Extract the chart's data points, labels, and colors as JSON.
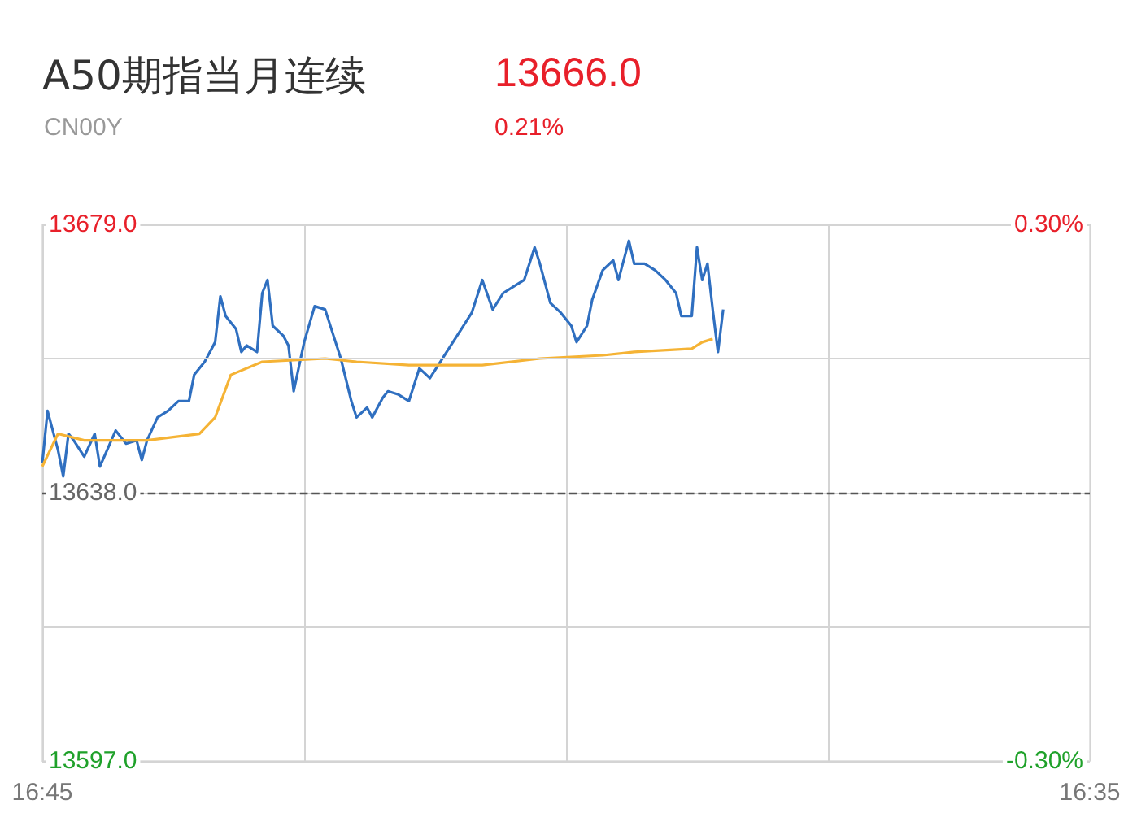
{
  "chart_data": {
    "type": "line",
    "title": "A50期指当月连续",
    "subtitle": "CN00Y",
    "annotations": [
      "13666.0",
      "0.21%"
    ],
    "categories": [
      "16:45",
      null,
      null,
      null,
      null,
      null,
      null,
      null,
      null,
      null,
      null,
      null,
      null,
      null,
      null,
      null,
      null,
      null,
      null,
      null,
      null,
      null,
      null,
      null,
      null,
      null,
      null,
      null,
      null,
      null,
      null,
      null,
      null,
      null,
      null,
      null,
      null,
      null,
      null,
      null,
      null,
      null,
      null,
      null,
      null,
      null,
      null,
      null,
      null,
      null,
      null,
      null,
      null,
      null,
      null,
      null,
      null,
      null,
      null,
      null,
      null,
      null,
      null,
      null,
      null,
      null,
      null,
      null,
      null,
      null,
      null,
      null,
      null,
      null,
      null,
      null,
      null,
      null,
      null,
      null,
      null,
      null,
      null,
      null,
      null,
      null,
      null,
      null,
      null,
      null,
      null,
      null,
      null,
      null,
      null,
      null,
      null,
      null,
      null,
      null,
      null,
      null,
      null,
      null,
      null,
      null,
      null,
      null,
      null,
      null,
      null,
      null,
      null,
      null,
      null,
      null,
      null,
      null,
      null,
      null,
      null,
      null,
      null,
      null,
      null,
      null,
      null,
      null,
      null,
      null,
      null,
      null,
      null,
      null,
      null,
      null,
      null,
      null,
      null,
      null,
      null,
      null,
      null,
      null,
      null,
      null,
      null,
      null,
      null,
      null,
      null,
      null,
      null,
      null,
      null,
      null,
      null,
      null,
      null,
      null,
      null,
      null,
      null,
      null,
      null,
      null,
      null,
      null,
      null,
      null,
      null,
      null,
      null,
      null,
      null,
      null,
      null,
      null,
      null,
      null,
      null,
      null,
      null,
      null,
      null,
      null,
      null,
      null,
      null,
      null,
      null,
      null,
      null,
      null,
      null,
      null,
      null,
      null,
      null,
      null,
      "16:35"
    ],
    "ylim": [
      13597,
      13679
    ],
    "yticks": [
      {
        "value": 13597,
        "label": "13597.0"
      },
      {
        "value": 13617.5,
        "label": null
      },
      {
        "value": 13638,
        "label": "13638.0"
      },
      {
        "value": 13658.5,
        "label": null
      },
      {
        "value": 13679,
        "label": "13679.0"
      }
    ],
    "y2lim": [
      -0.3,
      0.3
    ],
    "y2ticks": [
      {
        "value": -0.3,
        "label": "-0.30%"
      },
      {
        "value": 0.3,
        "label": "0.30%"
      }
    ],
    "ref_lines": [
      {
        "axis": "y",
        "value": 13638,
        "color": "#555555",
        "line_style": "dashed"
      }
    ],
    "grid": true,
    "marker": "none",
    "series": [
      {
        "color": "#2f6fc0",
        "values": [
          13642.5,
          13650.5,
          null,
          13644.5,
          13640.5,
          13647,
          13646,
          null,
          13643.5,
          null,
          13647,
          13642,
          null,
          null,
          13647.5,
          null,
          13645.5,
          null,
          13646,
          13643,
          13646,
          null,
          13649.5,
          null,
          13650.5,
          null,
          13652,
          null,
          13652,
          13656,
          null,
          13658,
          null,
          13661,
          13668,
          13665,
          null,
          13663,
          13659.5,
          13660.5,
          null,
          13659.5,
          13668.5,
          13670.5,
          13663.5,
          null,
          13662,
          13660.5,
          13653.5,
          null,
          13661,
          null,
          13666.5,
          null,
          13666,
          null,
          13661,
          13658.5,
          null,
          13652,
          13649.5,
          null,
          13651,
          13649.5,
          null,
          13652.5,
          13653.5,
          null,
          13653,
          null,
          13652,
          null,
          13657,
          null,
          13655.5,
          null,
          13658,
          null,
          13660.5,
          null,
          13663,
          null,
          13665.5,
          null,
          13670.5,
          null,
          13666,
          null,
          13668.5,
          null,
          13669.5,
          null,
          13670.5,
          null,
          13675.5,
          13673,
          null,
          13667,
          null,
          13665.5,
          null,
          13663.5,
          13661,
          null,
          13663.5,
          13667.5,
          null,
          13672,
          null,
          13673.5,
          13670.5,
          null,
          13676.5,
          13673,
          null,
          13673,
          null,
          13672,
          null,
          13670.5,
          null,
          13668.5,
          13665,
          null,
          13665,
          13675.5,
          13670.5,
          13673,
          13666,
          13659.5,
          13666,
          null,
          null,
          null,
          null,
          null,
          null,
          null,
          null,
          null,
          null,
          null,
          null,
          null,
          null,
          null,
          null,
          null,
          null,
          null,
          null,
          null,
          null,
          null,
          null,
          null,
          null,
          null,
          null,
          null,
          null,
          null,
          null,
          null,
          null,
          null,
          null,
          null,
          null,
          null,
          null,
          null,
          null,
          null,
          null,
          null,
          null,
          null,
          null,
          null,
          null,
          null,
          null,
          null,
          null,
          null,
          null,
          null,
          null,
          null,
          null,
          null,
          null,
          null,
          null,
          null,
          null,
          null,
          null,
          null,
          null
        ]
      },
      {
        "color": "#f5b335",
        "values": [
          13642,
          null,
          null,
          13647,
          null,
          null,
          null,
          null,
          13646,
          null,
          null,
          null,
          null,
          null,
          null,
          null,
          null,
          null,
          null,
          null,
          13646,
          null,
          null,
          null,
          null,
          null,
          null,
          null,
          null,
          null,
          13647,
          null,
          null,
          13649.5,
          null,
          null,
          13656,
          null,
          null,
          null,
          null,
          null,
          13658,
          null,
          null,
          null,
          null,
          null,
          null,
          null,
          null,
          null,
          null,
          null,
          13658.5,
          null,
          null,
          null,
          null,
          null,
          13658,
          null,
          null,
          null,
          null,
          null,
          null,
          null,
          null,
          null,
          13657.5,
          null,
          null,
          null,
          null,
          null,
          null,
          null,
          null,
          null,
          null,
          null,
          null,
          null,
          13657.5,
          null,
          null,
          null,
          null,
          null,
          null,
          null,
          null,
          null,
          null,
          13658.5,
          null,
          null,
          null,
          null,
          null,
          null,
          null,
          null,
          null,
          null,
          null,
          13659,
          null,
          null,
          null,
          null,
          null,
          13659.5,
          null,
          null,
          null,
          null,
          null,
          null,
          null,
          null,
          null,
          null,
          13660,
          null,
          13661,
          null,
          13661.5,
          null,
          null,
          null,
          null,
          null,
          null,
          null,
          null,
          null,
          null,
          null,
          null,
          null,
          null,
          null,
          null,
          null,
          null,
          null,
          null,
          null,
          null,
          null,
          null,
          null,
          null,
          null,
          null,
          null,
          null,
          null,
          null,
          null,
          null,
          null,
          null,
          null,
          null,
          null,
          null,
          null,
          null,
          null,
          null,
          null,
          null,
          null,
          null,
          null,
          null,
          null,
          null,
          null,
          null,
          null,
          null,
          null,
          null,
          null,
          null,
          null,
          null,
          null,
          null,
          null,
          null,
          null,
          null,
          null,
          null,
          null,
          null
        ]
      }
    ]
  }
}
